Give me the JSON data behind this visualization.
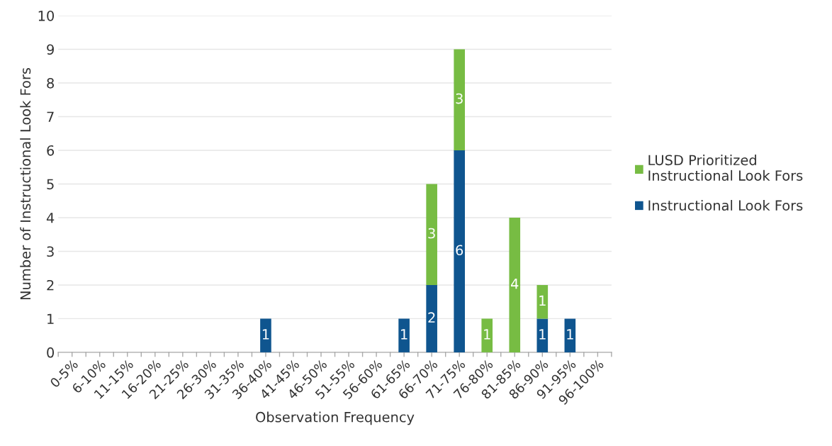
{
  "chart_data": {
    "type": "bar",
    "stacked": true,
    "xlabel": "Observation Frequency",
    "ylabel": "Number of Instructional Look Fors",
    "categories": [
      "0-5%",
      "6-10%",
      "11-15%",
      "16-20%",
      "21-25%",
      "26-30%",
      "31-35%",
      "36-40%",
      "41-45%",
      "46-50%",
      "51-55%",
      "56-60%",
      "61-65%",
      "66-70%",
      "71-75%",
      "76-80%",
      "81-85%",
      "86-90%",
      "91-95%",
      "96-100%"
    ],
    "series": [
      {
        "name": "Instructional Look Fors",
        "color": "#0f558f",
        "values": [
          0,
          0,
          0,
          0,
          0,
          0,
          0,
          1,
          0,
          0,
          0,
          0,
          1,
          2,
          6,
          0,
          0,
          1,
          1,
          0
        ],
        "value_labels": [
          null,
          null,
          null,
          null,
          null,
          null,
          null,
          "1",
          null,
          null,
          null,
          null,
          "1",
          "2",
          "6",
          null,
          null,
          "1",
          "1",
          null
        ]
      },
      {
        "name": "LUSD Prioritized\nInstructional Look Fors",
        "color": "#77bc43",
        "values": [
          0,
          0,
          0,
          0,
          0,
          0,
          0,
          0,
          0,
          0,
          0,
          0,
          0,
          3,
          3,
          1,
          4,
          1,
          0,
          0
        ],
        "value_labels": [
          null,
          null,
          null,
          null,
          null,
          null,
          null,
          null,
          null,
          null,
          null,
          null,
          null,
          "3",
          "3",
          "1",
          "4",
          "1",
          null,
          null
        ]
      }
    ],
    "ylim": [
      0,
      10
    ],
    "yticks": [
      0,
      1,
      2,
      3,
      4,
      5,
      6,
      7,
      8,
      9,
      10
    ],
    "grid": "y",
    "legend": "right"
  }
}
